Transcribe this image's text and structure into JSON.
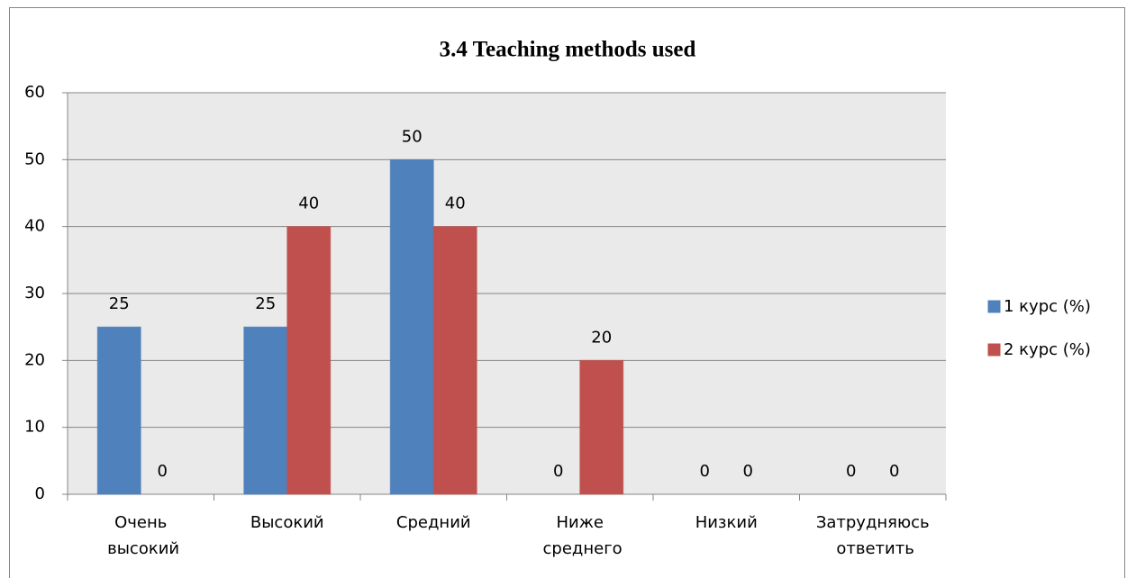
{
  "chart_data": {
    "type": "bar",
    "title": "3.4 Teaching methods used",
    "categories": [
      "Очень высокий",
      "Высокий",
      "Средний",
      "Ниже среднего",
      "Низкий",
      "Затрудняюсь ответить"
    ],
    "series": [
      {
        "name": "1 курс (%)",
        "color": "#4f81bd",
        "values": [
          25,
          25,
          50,
          0,
          0,
          0
        ]
      },
      {
        "name": "2 курс (%)",
        "color": "#c0504d",
        "values": [
          0,
          40,
          40,
          20,
          0,
          0
        ]
      }
    ],
    "ylim": [
      0,
      60
    ],
    "yticks": [
      0,
      10,
      20,
      30,
      40,
      50,
      60
    ],
    "grid": true,
    "legend": "right"
  }
}
